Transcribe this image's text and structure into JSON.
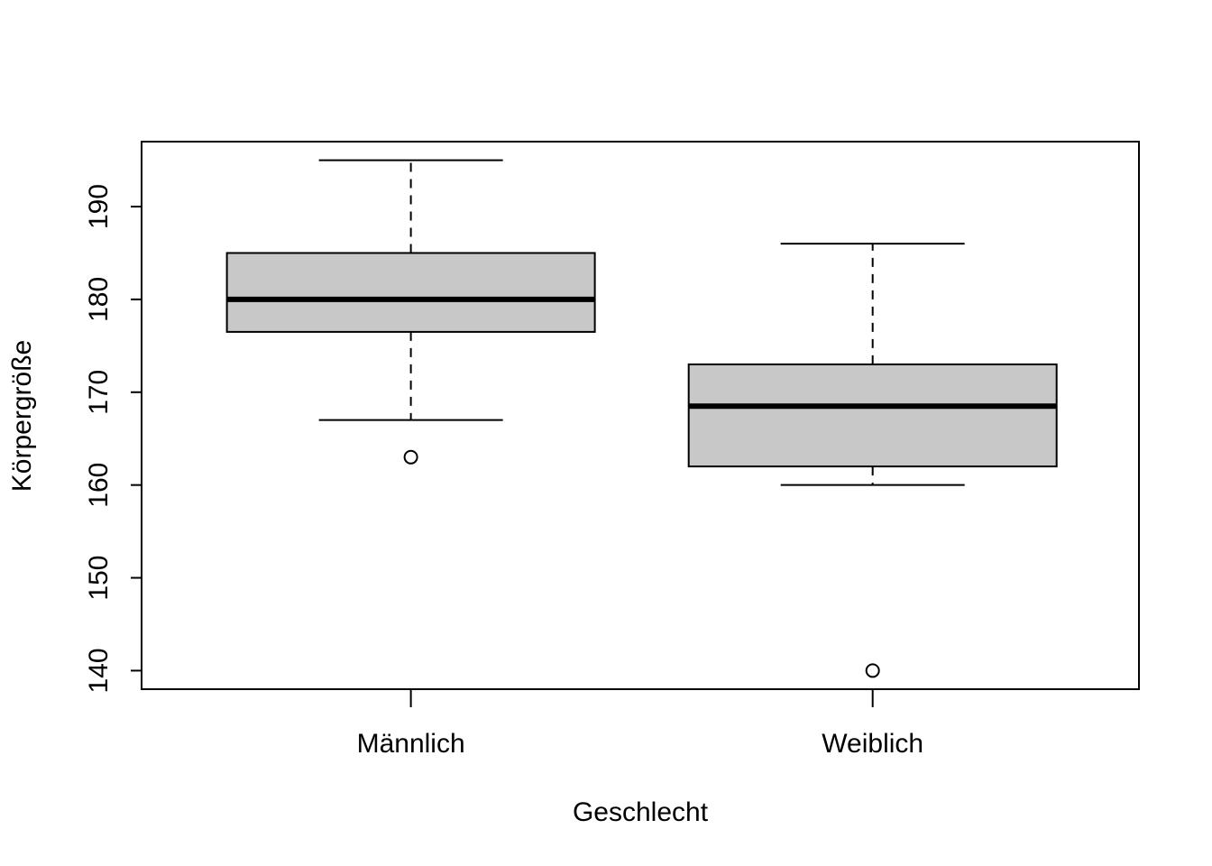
{
  "chart_data": {
    "type": "boxplot",
    "xlabel": "Geschlecht",
    "ylabel": "Körpergröße",
    "categories": [
      "Männlich",
      "Weiblich"
    ],
    "ylim": [
      138,
      197
    ],
    "yticks": [
      140,
      150,
      160,
      170,
      180,
      190
    ],
    "grid": false,
    "legend": "none",
    "box_fill": "#c8c8c8",
    "boxes": [
      {
        "category": "Männlich",
        "whisker_low": 167,
        "q1": 176.5,
        "median": 180,
        "q3": 185,
        "whisker_high": 195,
        "outliers": [
          163
        ]
      },
      {
        "category": "Weiblich",
        "whisker_low": 160,
        "q1": 162,
        "median": 168.5,
        "q3": 173,
        "whisker_high": 186,
        "outliers": [
          140
        ]
      }
    ]
  }
}
